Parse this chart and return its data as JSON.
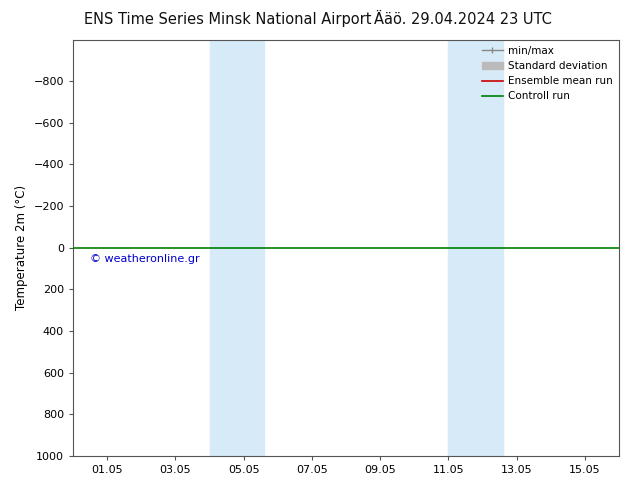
{
  "title_left": "ENS Time Series Minsk National Airport",
  "title_right": "Ääö. 29.04.2024 23 UTC",
  "ylabel": "Temperature 2m (°C)",
  "ylim_bottom": -1000,
  "ylim_top": 1000,
  "yticks": [
    -800,
    -600,
    -400,
    -200,
    0,
    200,
    400,
    600,
    800,
    1000
  ],
  "xtick_labels": [
    "01.05",
    "03.05",
    "05.05",
    "07.05",
    "09.05",
    "11.05",
    "13.05",
    "15.05"
  ],
  "shading_bands": [
    {
      "xmin": 4.0,
      "xmax": 5.5
    },
    {
      "xmin": 11.0,
      "xmax": 12.5
    }
  ],
  "shading_color": "#d6eaf8",
  "green_line_y": 0,
  "green_line_color": "#008000",
  "red_line_color": "#cc0000",
  "watermark": "© weatheronline.gr",
  "watermark_color": "#0000cc",
  "legend_items": [
    {
      "label": "min/max",
      "color": "#888888",
      "lw": 1.0
    },
    {
      "label": "Standard deviation",
      "color": "#bbbbbb",
      "lw": 5
    },
    {
      "label": "Ensemble mean run",
      "color": "#cc0000",
      "lw": 1.2
    },
    {
      "label": "Controll run",
      "color": "#008000",
      "lw": 1.2
    }
  ],
  "bg_color": "#ffffff",
  "axis_bg_color": "#ffffff",
  "border_color": "#555555",
  "title_fontsize": 10.5,
  "tick_fontsize": 8,
  "ylabel_fontsize": 8.5,
  "watermark_fontsize": 8
}
